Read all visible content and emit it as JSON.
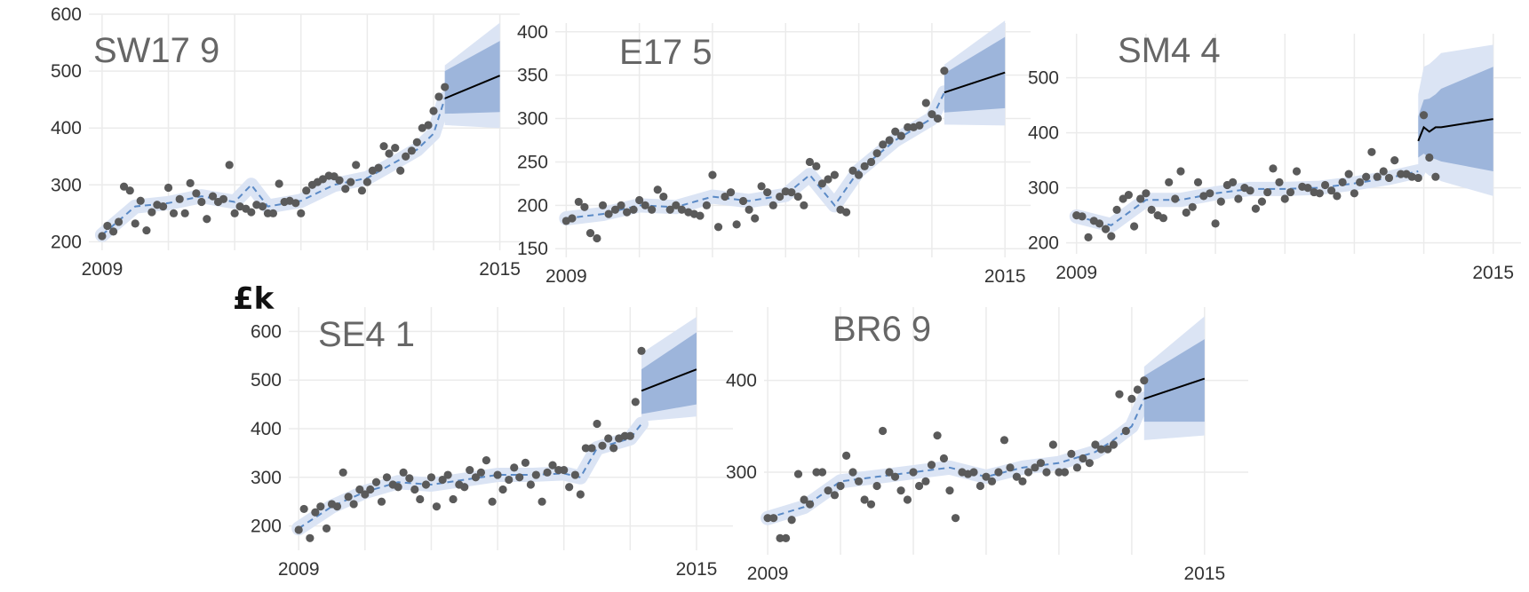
{
  "ylabel": "£k",
  "colors": {
    "point": "#5a5a5a",
    "fit_line": "#5b8ac6",
    "fit_band": "#dbe4f4",
    "forecast_outer": "#dbe4f4",
    "forecast_inner": "#9db5db",
    "forecast_line": "#000000",
    "grid": "#ebebeb"
  },
  "chart_data": [
    {
      "type": "scatter",
      "title": "SW17 9",
      "x_tick_labels": [
        "2009",
        "2015"
      ],
      "y_ticks": [
        200,
        300,
        400,
        500,
        600
      ],
      "xlim": [
        2008.8,
        2015.3
      ],
      "ylim": [
        185,
        600
      ],
      "observed": {
        "x": [
          2009.0,
          2009.08,
          2009.17,
          2009.25,
          2009.33,
          2009.42,
          2009.5,
          2009.58,
          2009.67,
          2009.75,
          2009.83,
          2009.92,
          2010.0,
          2010.08,
          2010.17,
          2010.25,
          2010.33,
          2010.42,
          2010.5,
          2010.58,
          2010.67,
          2010.75,
          2010.83,
          2010.92,
          2011.0,
          2011.08,
          2011.17,
          2011.25,
          2011.33,
          2011.42,
          2011.5,
          2011.58,
          2011.67,
          2011.75,
          2011.83,
          2011.92,
          2012.0,
          2012.08,
          2012.17,
          2012.25,
          2012.33,
          2012.42,
          2012.5,
          2012.58,
          2012.67,
          2012.75,
          2012.83,
          2012.92,
          2013.0,
          2013.08,
          2013.17,
          2013.25,
          2013.33,
          2013.42,
          2013.5,
          2013.58,
          2013.67,
          2013.75,
          2013.83,
          2013.92,
          2014.0,
          2014.08,
          2014.17
        ],
        "y": [
          210,
          228,
          218,
          235,
          297,
          290,
          232,
          272,
          220,
          252,
          265,
          262,
          295,
          250,
          275,
          250,
          303,
          285,
          270,
          240,
          280,
          270,
          275,
          335,
          250,
          262,
          258,
          252,
          265,
          262,
          250,
          250,
          302,
          270,
          272,
          268,
          250,
          290,
          300,
          305,
          310,
          316,
          315,
          308,
          293,
          305,
          335,
          290,
          305,
          325,
          330,
          368,
          355,
          365,
          325,
          350,
          360,
          375,
          400,
          405,
          430,
          455,
          472
        ]
      },
      "fit": {
        "x": [
          2009.0,
          2009.5,
          2010.0,
          2010.5,
          2011.0,
          2011.25,
          2011.5,
          2012.0,
          2012.5,
          2013.0,
          2013.5,
          2013.75,
          2014.0,
          2014.17
        ],
        "y": [
          212,
          262,
          268,
          280,
          270,
          300,
          262,
          272,
          300,
          312,
          345,
          362,
          390,
          452
        ]
      },
      "forecast": {
        "x": [
          2014.17,
          2015.0
        ],
        "mean": [
          452,
          492
        ],
        "inner": [
          [
            425,
            500
          ],
          [
            428,
            553
          ]
        ],
        "outer": [
          [
            405,
            510
          ],
          [
            400,
            585
          ]
        ]
      }
    },
    {
      "type": "scatter",
      "title": "E17 5",
      "x_tick_labels": [
        "2009",
        "2015"
      ],
      "y_ticks": [
        150,
        200,
        250,
        300,
        350,
        400
      ],
      "xlim": [
        2008.85,
        2015.35
      ],
      "ylim": [
        140,
        410
      ],
      "observed": {
        "x": [
          2009.0,
          2009.08,
          2009.17,
          2009.25,
          2009.33,
          2009.42,
          2009.5,
          2009.58,
          2009.67,
          2009.75,
          2009.83,
          2009.92,
          2010.0,
          2010.08,
          2010.17,
          2010.25,
          2010.33,
          2010.42,
          2010.5,
          2010.58,
          2010.67,
          2010.75,
          2010.83,
          2010.92,
          2011.0,
          2011.08,
          2011.17,
          2011.25,
          2011.33,
          2011.42,
          2011.5,
          2011.58,
          2011.67,
          2011.75,
          2011.83,
          2011.92,
          2012.0,
          2012.08,
          2012.17,
          2012.25,
          2012.33,
          2012.42,
          2012.5,
          2012.58,
          2012.67,
          2012.75,
          2012.83,
          2012.92,
          2013.0,
          2013.08,
          2013.17,
          2013.25,
          2013.33,
          2013.42,
          2013.5,
          2013.58,
          2013.67,
          2013.75,
          2013.83,
          2013.92,
          2014.0,
          2014.08,
          2014.17
        ],
        "y": [
          182,
          185,
          204,
          198,
          168,
          162,
          200,
          190,
          195,
          200,
          192,
          195,
          206,
          200,
          195,
          218,
          210,
          195,
          200,
          195,
          192,
          190,
          188,
          200,
          235,
          175,
          210,
          215,
          178,
          205,
          195,
          185,
          222,
          215,
          200,
          210,
          216,
          215,
          210,
          200,
          250,
          245,
          225,
          230,
          235,
          195,
          192,
          240,
          235,
          245,
          250,
          260,
          270,
          275,
          285,
          280,
          290,
          290,
          292,
          318,
          305,
          300,
          355
        ]
      },
      "fit": {
        "x": [
          2009.0,
          2009.5,
          2010.0,
          2010.5,
          2011.0,
          2011.5,
          2012.0,
          2012.33,
          2012.67,
          2013.0,
          2013.5,
          2014.0,
          2014.17
        ],
        "y": [
          185,
          190,
          200,
          198,
          210,
          205,
          212,
          235,
          200,
          240,
          275,
          300,
          330
        ]
      },
      "forecast": {
        "x": [
          2014.17,
          2015.0
        ],
        "mean": [
          330,
          353
        ],
        "inner": [
          [
            307,
            352
          ],
          [
            312,
            394
          ]
        ],
        "outer": [
          [
            293,
            362
          ],
          [
            292,
            413
          ]
        ]
      }
    },
    {
      "type": "scatter",
      "title": "SM4 4",
      "x_tick_labels": [
        "2009",
        "2015"
      ],
      "y_ticks": [
        200,
        300,
        400,
        500
      ],
      "xlim": [
        2008.85,
        2015.4
      ],
      "ylim": [
        180,
        580
      ],
      "observed": {
        "x": [
          2009.0,
          2009.08,
          2009.17,
          2009.25,
          2009.33,
          2009.42,
          2009.5,
          2009.58,
          2009.67,
          2009.75,
          2009.83,
          2009.92,
          2010.0,
          2010.08,
          2010.17,
          2010.25,
          2010.33,
          2010.42,
          2010.5,
          2010.58,
          2010.67,
          2010.75,
          2010.83,
          2010.92,
          2011.0,
          2011.08,
          2011.17,
          2011.25,
          2011.33,
          2011.42,
          2011.5,
          2011.58,
          2011.67,
          2011.75,
          2011.83,
          2011.92,
          2012.0,
          2012.08,
          2012.17,
          2012.25,
          2012.33,
          2012.42,
          2012.5,
          2012.58,
          2012.67,
          2012.75,
          2012.83,
          2012.92,
          2013.0,
          2013.08,
          2013.17,
          2013.25,
          2013.33,
          2013.42,
          2013.5,
          2013.58,
          2013.67,
          2013.75,
          2013.83,
          2013.92,
          2014.0,
          2014.08,
          2014.17
        ],
        "y": [
          250,
          248,
          210,
          240,
          235,
          225,
          212,
          260,
          280,
          287,
          230,
          280,
          290,
          260,
          250,
          245,
          310,
          280,
          330,
          255,
          265,
          310,
          285,
          290,
          235,
          275,
          305,
          310,
          280,
          300,
          295,
          262,
          275,
          292,
          335,
          310,
          280,
          292,
          330,
          302,
          300,
          292,
          290,
          305,
          295,
          285,
          310,
          325,
          290,
          310,
          320,
          365,
          320,
          330,
          318,
          350,
          325,
          325,
          320,
          318,
          432,
          355,
          320
        ]
      },
      "fit": {
        "x": [
          2009.0,
          2009.5,
          2010.0,
          2010.5,
          2011.0,
          2011.5,
          2012.0,
          2012.5,
          2013.0,
          2013.5,
          2013.92
        ],
        "y": [
          248,
          232,
          278,
          278,
          290,
          298,
          298,
          300,
          308,
          318,
          330
        ]
      },
      "forecast": {
        "x": [
          2013.92,
          2014.0,
          2014.08,
          2014.17,
          2014.25,
          2015.0
        ],
        "mean": [
          385,
          410,
          402,
          410,
          410,
          425
        ],
        "inner": [
          [
            355,
            430
          ],
          [
            362,
            460
          ],
          [
            355,
            462
          ],
          [
            352,
            470
          ],
          [
            348,
            480
          ],
          [
            330,
            520
          ]
        ],
        "outer": [
          [
            330,
            470
          ],
          [
            330,
            520
          ],
          [
            322,
            525
          ],
          [
            318,
            535
          ],
          [
            312,
            545
          ],
          [
            285,
            560
          ]
        ]
      }
    },
    {
      "type": "scatter",
      "title": "SE4 1",
      "x_tick_labels": [
        "2009",
        "2015"
      ],
      "y_ticks": [
        200,
        300,
        400,
        500,
        600
      ],
      "xlim": [
        2008.85,
        2015.55
      ],
      "ylim": [
        150,
        650
      ],
      "observed": {
        "x": [
          2009.0,
          2009.08,
          2009.17,
          2009.25,
          2009.33,
          2009.42,
          2009.5,
          2009.58,
          2009.67,
          2009.75,
          2009.83,
          2009.92,
          2010.0,
          2010.08,
          2010.17,
          2010.25,
          2010.33,
          2010.42,
          2010.5,
          2010.58,
          2010.67,
          2010.75,
          2010.83,
          2010.92,
          2011.0,
          2011.08,
          2011.17,
          2011.25,
          2011.33,
          2011.42,
          2011.5,
          2011.58,
          2011.67,
          2011.75,
          2011.83,
          2011.92,
          2012.0,
          2012.08,
          2012.17,
          2012.25,
          2012.33,
          2012.42,
          2012.5,
          2012.58,
          2012.67,
          2012.75,
          2012.83,
          2012.92,
          2013.0,
          2013.08,
          2013.17,
          2013.25,
          2013.33,
          2013.42,
          2013.5,
          2013.58,
          2013.67,
          2013.75,
          2013.83,
          2013.92,
          2014.0,
          2014.08,
          2014.17
        ],
        "y": [
          192,
          235,
          175,
          228,
          240,
          195,
          245,
          240,
          310,
          260,
          245,
          275,
          265,
          275,
          290,
          250,
          300,
          285,
          280,
          310,
          298,
          275,
          255,
          285,
          300,
          240,
          295,
          305,
          255,
          285,
          280,
          315,
          300,
          310,
          335,
          250,
          305,
          275,
          295,
          320,
          300,
          330,
          285,
          305,
          250,
          310,
          325,
          315,
          315,
          280,
          305,
          265,
          360,
          360,
          410,
          365,
          380,
          360,
          380,
          385,
          385,
          455,
          560
        ]
      },
      "fit": {
        "x": [
          2009.0,
          2009.5,
          2010.0,
          2010.5,
          2011.0,
          2011.5,
          2012.0,
          2012.5,
          2013.0,
          2013.25,
          2013.5,
          2014.0,
          2014.17
        ],
        "y": [
          195,
          240,
          270,
          290,
          285,
          295,
          305,
          305,
          308,
          300,
          360,
          380,
          410
        ]
      },
      "forecast": {
        "x": [
          2014.17,
          2015.0
        ],
        "mean": [
          478,
          522
        ],
        "inner": [
          [
            430,
            522
          ],
          [
            450,
            598
          ]
        ],
        "outer": [
          [
            415,
            555
          ],
          [
            425,
            630
          ]
        ]
      }
    },
    {
      "type": "scatter",
      "title": "BR6 9",
      "x_tick_labels": [
        "2009",
        "2015"
      ],
      "y_ticks": [
        300,
        400
      ],
      "xlim": [
        2008.95,
        2015.6
      ],
      "ylim": [
        210,
        480
      ],
      "observed": {
        "x": [
          2009.0,
          2009.08,
          2009.17,
          2009.25,
          2009.33,
          2009.42,
          2009.5,
          2009.58,
          2009.67,
          2009.75,
          2009.83,
          2009.92,
          2010.0,
          2010.08,
          2010.17,
          2010.25,
          2010.33,
          2010.42,
          2010.5,
          2010.58,
          2010.67,
          2010.75,
          2010.83,
          2010.92,
          2011.0,
          2011.08,
          2011.17,
          2011.25,
          2011.33,
          2011.42,
          2011.5,
          2011.58,
          2011.67,
          2011.75,
          2011.83,
          2011.92,
          2012.0,
          2012.08,
          2012.17,
          2012.25,
          2012.33,
          2012.42,
          2012.5,
          2012.58,
          2012.67,
          2012.75,
          2012.83,
          2012.92,
          2013.0,
          2013.08,
          2013.17,
          2013.25,
          2013.33,
          2013.42,
          2013.5,
          2013.58,
          2013.67,
          2013.75,
          2013.83,
          2013.92,
          2014.0,
          2014.08,
          2014.17
        ],
        "y": [
          250,
          250,
          228,
          228,
          248,
          298,
          270,
          265,
          300,
          300,
          280,
          275,
          285,
          318,
          300,
          290,
          270,
          265,
          285,
          345,
          300,
          295,
          280,
          270,
          300,
          285,
          290,
          308,
          340,
          315,
          280,
          250,
          300,
          298,
          300,
          285,
          295,
          290,
          300,
          335,
          305,
          295,
          290,
          300,
          305,
          310,
          300,
          330,
          300,
          300,
          320,
          305,
          315,
          310,
          330,
          325,
          325,
          330,
          385,
          345,
          380,
          390,
          400
        ]
      },
      "fit": {
        "x": [
          2009.0,
          2009.5,
          2010.0,
          2010.5,
          2011.0,
          2011.5,
          2012.0,
          2012.5,
          2013.0,
          2013.5,
          2013.75,
          2014.0,
          2014.17
        ],
        "y": [
          250,
          262,
          290,
          295,
          300,
          305,
          295,
          305,
          310,
          322,
          335,
          350,
          380
        ]
      },
      "forecast": {
        "x": [
          2014.17,
          2015.0
        ],
        "mean": [
          380,
          402
        ],
        "inner": [
          [
            355,
            405
          ],
          [
            355,
            445
          ]
        ],
        "outer": [
          [
            335,
            415
          ],
          [
            340,
            470
          ]
        ]
      }
    }
  ]
}
